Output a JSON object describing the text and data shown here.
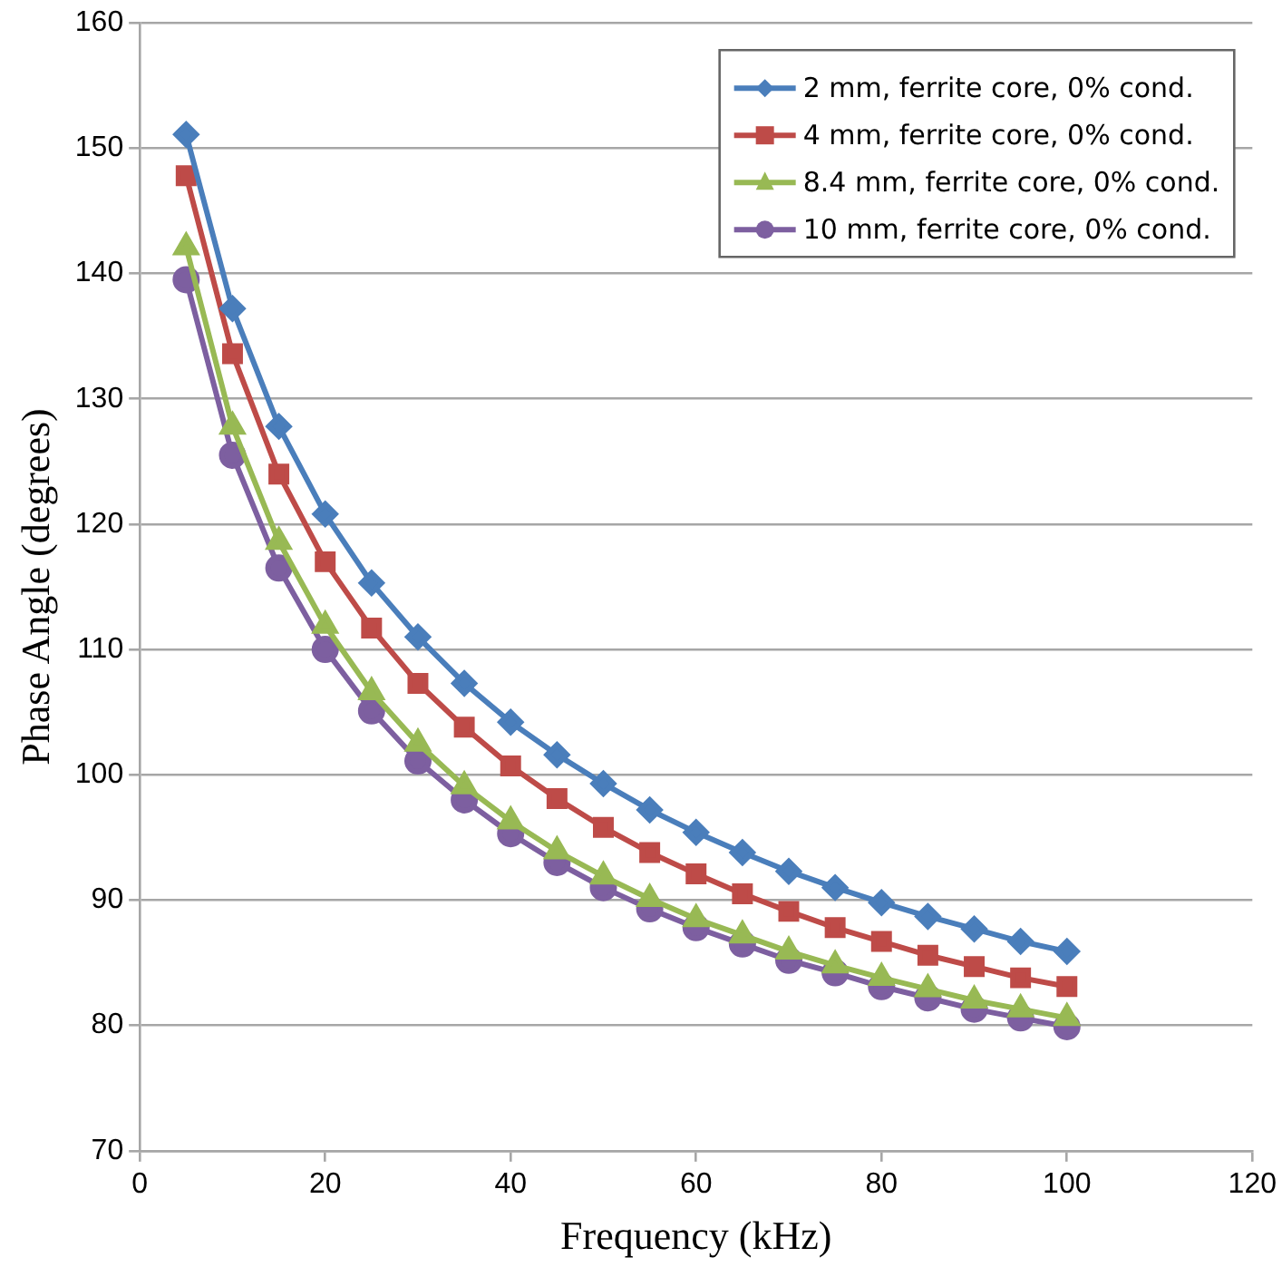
{
  "chart_data": {
    "type": "line",
    "xlabel": "Frequency (kHz)",
    "ylabel": "Phase Angle (degrees)",
    "x": [
      5,
      10,
      15,
      20,
      25,
      30,
      35,
      40,
      45,
      50,
      55,
      60,
      65,
      70,
      75,
      80,
      85,
      90,
      95,
      100
    ],
    "series": [
      {
        "name": "2 mm, ferrite core, 0% cond.",
        "color": "#4a7ebb",
        "marker": "diamond",
        "values": [
          151.1,
          137.2,
          127.8,
          120.8,
          115.3,
          111.0,
          107.3,
          104.2,
          101.6,
          99.3,
          97.2,
          95.4,
          93.8,
          92.3,
          91.0,
          89.8,
          88.7,
          87.7,
          86.7,
          85.9
        ]
      },
      {
        "name": "4 mm, ferrite core, 0% cond.",
        "color": "#be4b48",
        "marker": "square",
        "values": [
          147.8,
          133.6,
          124.0,
          117.0,
          111.7,
          107.3,
          103.8,
          100.7,
          98.1,
          95.8,
          93.8,
          92.1,
          90.5,
          89.1,
          87.8,
          86.7,
          85.6,
          84.7,
          83.8,
          83.1
        ]
      },
      {
        "name": "8.4 mm, ferrite core, 0% cond.",
        "color": "#98b954",
        "marker": "triangle",
        "values": [
          142.1,
          127.8,
          118.6,
          111.9,
          106.6,
          102.5,
          99.1,
          96.3,
          93.9,
          91.9,
          90.1,
          88.5,
          87.2,
          85.9,
          84.8,
          83.8,
          82.9,
          82.0,
          81.3,
          80.6
        ]
      },
      {
        "name": "10 mm, ferrite core, 0% cond.",
        "color": "#7d5fa0",
        "marker": "circle",
        "values": [
          139.5,
          125.5,
          116.5,
          110.0,
          105.1,
          101.1,
          98.0,
          95.3,
          93.0,
          91.0,
          89.3,
          87.8,
          86.5,
          85.2,
          84.2,
          83.1,
          82.2,
          81.3,
          80.6,
          79.9
        ]
      }
    ],
    "xlim": [
      0,
      120
    ],
    "xticks": [
      0,
      20,
      40,
      60,
      80,
      100,
      120
    ],
    "ylim": [
      70,
      160
    ],
    "yticks": [
      70,
      80,
      90,
      100,
      110,
      120,
      130,
      140,
      150,
      160
    ],
    "grid": "y",
    "legend": "top right"
  }
}
